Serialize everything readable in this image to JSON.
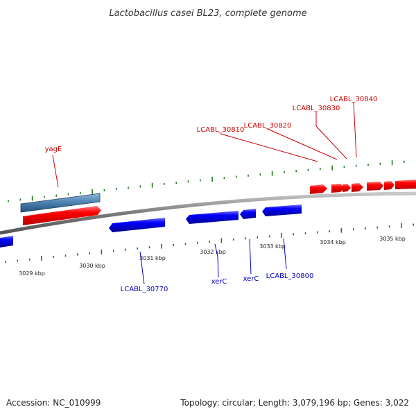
{
  "title": "Lactobacillus casei BL23, complete genome",
  "footer": {
    "accession": "Accession: NC_010999",
    "topology": "Topology: circular; Length: 3,079,196 bp; Genes: 3,022"
  },
  "colors": {
    "forward_gene": "#ff0000",
    "reverse_gene": "#0000ff",
    "highlight_feature": "#4a7fb0",
    "backbone": "#808080",
    "tick": "#1a7a1a",
    "forward_label": "#cc0000",
    "reverse_label": "#0000bb"
  },
  "tick_labels": [
    "3029 kbp",
    "3030 kbp",
    "3031 kbp",
    "3032 kbp",
    "3033 kbp",
    "3034 kbp",
    "3035 kbp"
  ],
  "gene_labels": {
    "yagE": "yagE",
    "LCABL_30810": "LCABL_30810",
    "LCABL_30820": "LCABL_30820",
    "LCABL_30830": "LCABL_30830",
    "LCABL_30840": "LCABL_30840",
    "LCABL_30770": "LCABL_30770",
    "xerC_1": "xerC",
    "xerC_2": "xerC",
    "LCABL_30800": "LCABL_30800"
  }
}
